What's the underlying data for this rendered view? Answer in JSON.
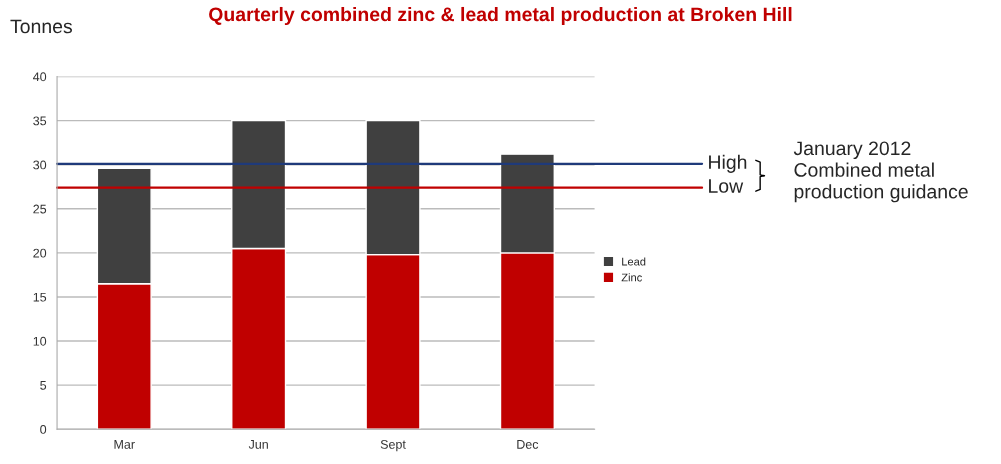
{
  "chart_data": {
    "type": "bar",
    "title": "Quarterly combined zinc & lead metal production at Broken Hill",
    "ylabel": "Tonnes",
    "categories": [
      "Mar",
      "Jun",
      "Sept",
      "Dec"
    ],
    "series": [
      {
        "name": "Zinc",
        "color": "#c00000",
        "values": [
          16.5,
          20.5,
          19.8,
          20.0
        ]
      },
      {
        "name": "Lead",
        "color": "#404040",
        "values": [
          13.1,
          14.5,
          15.2,
          11.2
        ]
      }
    ],
    "stacked": true,
    "ylim": [
      0,
      40
    ],
    "yticks": [
      0,
      5,
      10,
      15,
      20,
      25,
      30,
      35,
      40
    ],
    "grid": "y",
    "legend": "right",
    "ref_lines": [
      {
        "axis": "y",
        "value": 30.1,
        "label": "High",
        "color": "#1f3a7a"
      },
      {
        "axis": "y",
        "value": 27.4,
        "label": "Low",
        "color": "#c00000"
      }
    ],
    "annotations": [
      "January 2012 Combined metal production guidance"
    ]
  }
}
